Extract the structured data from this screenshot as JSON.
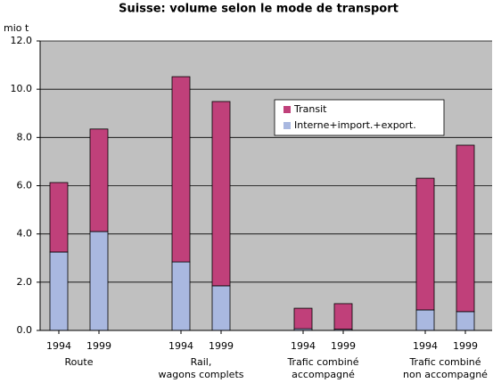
{
  "chart_data": {
    "type": "bar",
    "stacked": true,
    "title": "Suisse: volume selon le mode de transport",
    "y_label": "mio t",
    "categories": [
      "1994",
      "1999",
      "1994",
      "1999",
      "1994",
      "1999",
      "1994",
      "1999"
    ],
    "groups": [
      [
        "Route"
      ],
      [
        "Rail,",
        "wagons complets"
      ],
      [
        "Trafic combiné",
        "accompagné"
      ],
      [
        "Trafic combiné",
        "non accompagné"
      ]
    ],
    "series": [
      {
        "name": "Interne+import.+export.",
        "color": "#a9b8e0",
        "values": [
          3.25,
          4.1,
          2.84,
          1.85,
          0.07,
          0.05,
          0.85,
          0.78
        ]
      },
      {
        "name": "Transit",
        "color": "#c0407a",
        "values": [
          2.88,
          4.25,
          7.68,
          7.64,
          0.85,
          1.06,
          5.46,
          6.9
        ]
      }
    ],
    "ylim": [
      0,
      12
    ],
    "yticks": [
      {
        "value": 0,
        "label": "0.0"
      },
      {
        "value": 2,
        "label": "2.0"
      },
      {
        "value": 4,
        "label": "4.0"
      },
      {
        "value": 6,
        "label": "6.0"
      },
      {
        "value": 8,
        "label": "8.0"
      },
      {
        "value": 10,
        "label": "10.0"
      },
      {
        "value": 12,
        "label": "12.0"
      }
    ],
    "grid": true,
    "legend": "upper right"
  }
}
